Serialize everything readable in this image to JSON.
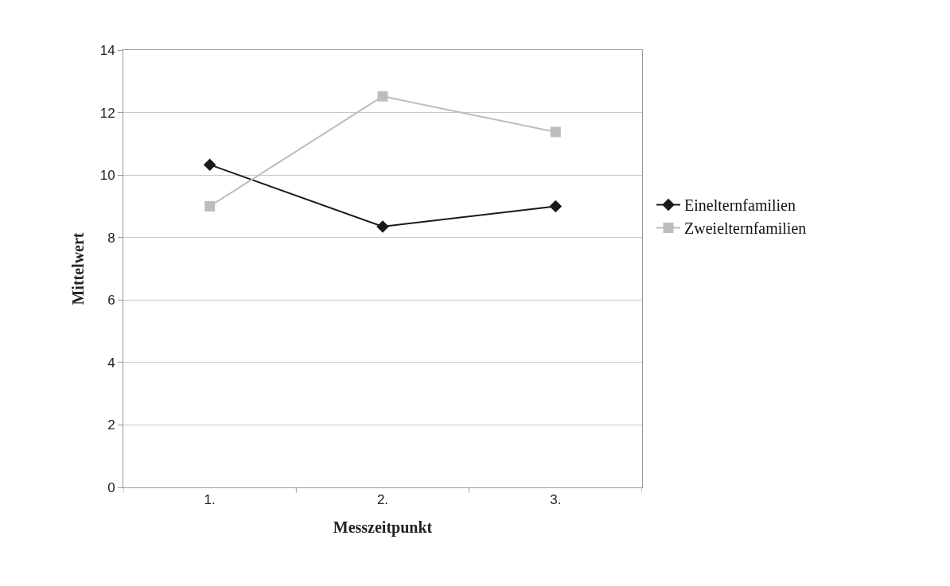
{
  "chart_data": {
    "type": "line",
    "xlabel": "Messzeitpunkt",
    "ylabel": "Mittelwert",
    "categories": [
      "1.",
      "2.",
      "3."
    ],
    "series": [
      {
        "name": "Einelternfamilien",
        "color": "#1a1a1a",
        "marker": "diamond",
        "values": [
          10.33,
          8.35,
          9.0
        ]
      },
      {
        "name": "Zweielternfamilien",
        "color": "#bdbdbd",
        "marker": "square",
        "values": [
          9.0,
          12.52,
          11.38
        ]
      }
    ],
    "ylim": [
      0,
      14
    ],
    "yticks": [
      0,
      2,
      4,
      6,
      8,
      10,
      12,
      14
    ],
    "grid": "y",
    "legend": "right",
    "line_style": "solid"
  }
}
